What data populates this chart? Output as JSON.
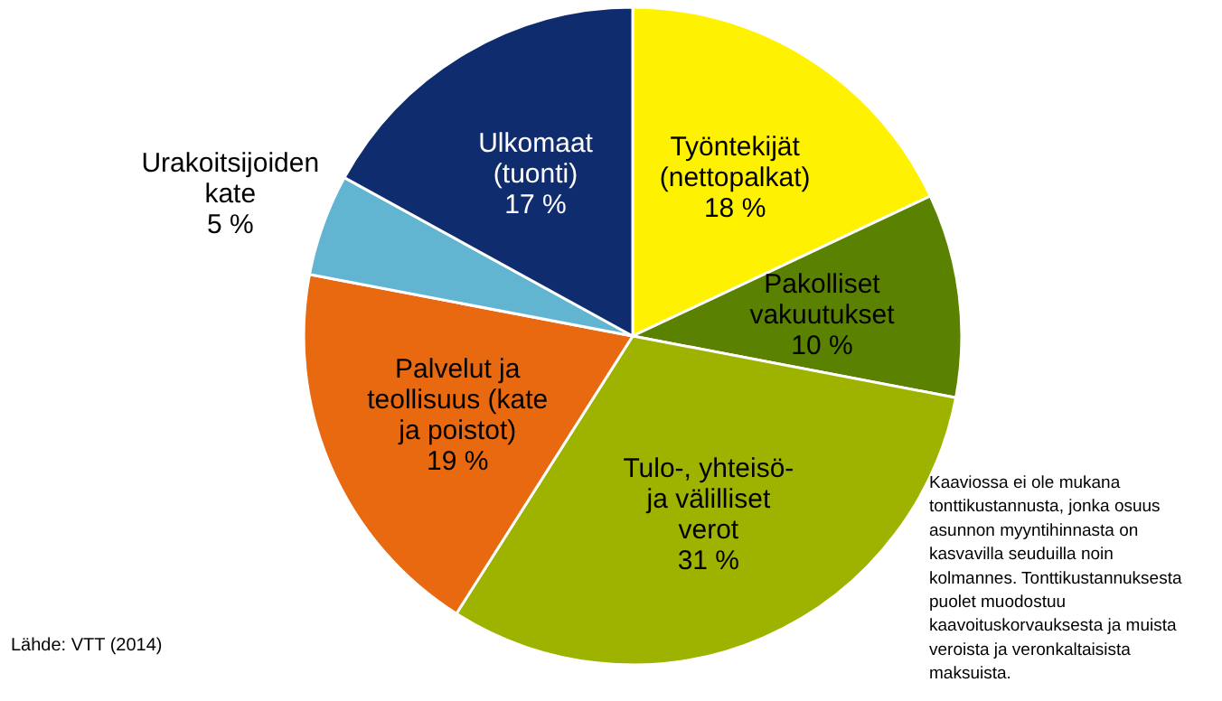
{
  "chart_data": {
    "type": "pie",
    "categories": [
      "Työntekijät\n(nettopalkat)",
      "Pakolliset\nvakuutukset",
      "Tulo-, yhteisö-\nja välilliset\nverot",
      "Palvelut ja\nteollisuus (kate\nja poistot)",
      "Urakoitsijoiden\nkate",
      "Ulkomaat\n(tuonti)"
    ],
    "values": [
      18,
      10,
      31,
      19,
      5,
      17
    ],
    "value_labels": [
      "18 %",
      "10 %",
      "31 %",
      "19 %",
      "5 %",
      "17 %"
    ],
    "colors": [
      "#fff200",
      "#5a8200",
      "#9db300",
      "#e8690f",
      "#62b5d0",
      "#0f2c6e"
    ],
    "annotations": [
      "Lähde: VTT (2014)",
      "Kaaviossa ei ole mukana\ntonttikustannusta, jonka osuus\nasunnon myyntihinnasta on\nkasvavilla seuduilla noin\nkolmannes. Tonttikustannuksesta\npuolet muodostuu\nkaavoituskorvauksesta ja muista\nveroista ja veronkaltaisista\nmaksuista."
    ]
  }
}
